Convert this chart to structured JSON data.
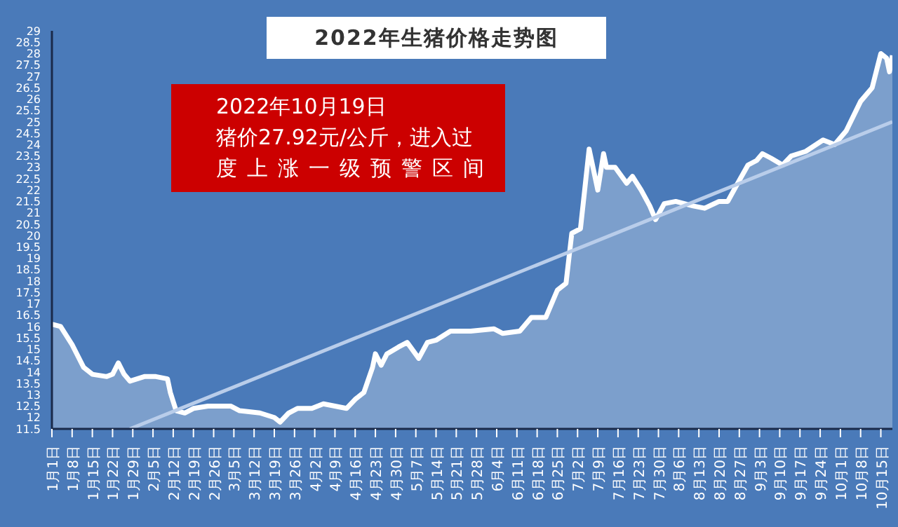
{
  "chart_data": {
    "type": "area",
    "title": "2022年生猪价格走势图",
    "annotations": [
      "2022年10月19日",
      "猪价27.92元/公斤，进入过",
      "度上涨一级预警区间"
    ],
    "xlim": [
      "--01-01",
      "--10-19"
    ],
    "xticks": [
      {
        "value": "--01-01",
        "label": "1月1日"
      },
      {
        "value": "--01-08",
        "label": "1月8日"
      },
      {
        "value": "--01-15",
        "label": "1月15日"
      },
      {
        "value": "--01-22",
        "label": "1月22日"
      },
      {
        "value": "--01-29",
        "label": "1月29日"
      },
      {
        "value": "--02-05",
        "label": "2月5日"
      },
      {
        "value": "--02-12",
        "label": "2月12日"
      },
      {
        "value": "--02-19",
        "label": "2月19日"
      },
      {
        "value": "--02-26",
        "label": "2月26日"
      },
      {
        "value": "--03-05",
        "label": "3月5日"
      },
      {
        "value": "--03-12",
        "label": "3月12日"
      },
      {
        "value": "--03-19",
        "label": "3月19日"
      },
      {
        "value": "--03-26",
        "label": "3月26日"
      },
      {
        "value": "--04-02",
        "label": "4月2日"
      },
      {
        "value": "--04-09",
        "label": "4月9日"
      },
      {
        "value": "--04-16",
        "label": "4月16日"
      },
      {
        "value": "--04-23",
        "label": "4月23日"
      },
      {
        "value": "--04-30",
        "label": "4月30日"
      },
      {
        "value": "--05-07",
        "label": "5月7日"
      },
      {
        "value": "--05-14",
        "label": "5月14日"
      },
      {
        "value": "--05-21",
        "label": "5月21日"
      },
      {
        "value": "--05-28",
        "label": "5月28日"
      },
      {
        "value": "--06-04",
        "label": "6月4日"
      },
      {
        "value": "--06-11",
        "label": "6月11日"
      },
      {
        "value": "--06-18",
        "label": "6月18日"
      },
      {
        "value": "--06-25",
        "label": "6月25日"
      },
      {
        "value": "--07-02",
        "label": "7月2日"
      },
      {
        "value": "--07-09",
        "label": "7月9日"
      },
      {
        "value": "--07-16",
        "label": "7月16日"
      },
      {
        "value": "--07-23",
        "label": "7月23日"
      },
      {
        "value": "--07-30",
        "label": "7月30日"
      },
      {
        "value": "--08-06",
        "label": "8月6日"
      },
      {
        "value": "--08-13",
        "label": "8月13日"
      },
      {
        "value": "--08-20",
        "label": "8月20日"
      },
      {
        "value": "--08-27",
        "label": "8月27日"
      },
      {
        "value": "--09-03",
        "label": "9月3日"
      },
      {
        "value": "--09-10",
        "label": "9月10日"
      },
      {
        "value": "--09-17",
        "label": "9月17日"
      },
      {
        "value": "--09-24",
        "label": "9月24日"
      },
      {
        "value": "--10-01",
        "label": "10月1日"
      },
      {
        "value": "--10-08",
        "label": "10月8日"
      },
      {
        "value": "--10-15",
        "label": "10月15日"
      }
    ],
    "ylim": [
      11.5,
      29
    ],
    "yticks": [
      11.5,
      12,
      12.5,
      13,
      13.5,
      14,
      14.5,
      15,
      15.5,
      16,
      16.5,
      17,
      17.5,
      18,
      18.5,
      19,
      19.5,
      20,
      20.5,
      21,
      21.5,
      22,
      22.5,
      23,
      23.5,
      24,
      24.5,
      25,
      25.5,
      26,
      26.5,
      27,
      27.5,
      28,
      28.5,
      29
    ],
    "series": [
      {
        "color": "#ffffff",
        "x": [
          "--01-01",
          "--01-04",
          "--01-08",
          "--01-12",
          "--01-15",
          "--01-20",
          "--01-22",
          "--01-24",
          "--01-26",
          "--01-28",
          "--02-02",
          "--02-06",
          "--02-10",
          "--02-11",
          "--02-13",
          "--02-16",
          "--02-19",
          "--02-24",
          "--03-04",
          "--03-07",
          "--03-14",
          "--03-19",
          "--03-21",
          "--03-24",
          "--03-27",
          "--04-01",
          "--04-05",
          "--04-09",
          "--04-13",
          "--04-16",
          "--04-19",
          "--04-22",
          "--04-23",
          "--04-25",
          "--04-27",
          "--05-01",
          "--05-04",
          "--05-08",
          "--05-11",
          "--05-14",
          "--05-19",
          "--05-26",
          "--06-03",
          "--06-06",
          "--06-12",
          "--06-16",
          "--06-21",
          "--06-25",
          "--06-28",
          "--06-30",
          "--07-03",
          "--07-06",
          "--07-09",
          "--07-11",
          "--07-12",
          "--07-15",
          "--07-19",
          "--07-21",
          "--07-24",
          "--07-27",
          "--07-29",
          "--08-01",
          "--08-05",
          "--08-08",
          "--08-11",
          "--08-15",
          "--08-20",
          "--08-23",
          "--08-26",
          "--08-30",
          "--09-02",
          "--09-04",
          "--09-07",
          "--09-11",
          "--09-14",
          "--09-19",
          "--09-25",
          "--09-29",
          "--10-03",
          "--10-08",
          "--10-12",
          "--10-15",
          "--10-17",
          "--10-18",
          "--10-19"
        ],
        "values": [
          16.1,
          16.0,
          15.2,
          14.2,
          13.9,
          13.8,
          13.9,
          14.4,
          13.9,
          13.6,
          13.8,
          13.8,
          13.7,
          13.1,
          12.3,
          12.2,
          12.4,
          12.5,
          12.5,
          12.3,
          12.2,
          12.0,
          11.8,
          12.2,
          12.4,
          12.4,
          12.6,
          12.5,
          12.4,
          12.8,
          13.1,
          14.2,
          14.8,
          14.3,
          14.8,
          15.1,
          15.3,
          14.6,
          15.3,
          15.4,
          15.8,
          15.8,
          15.9,
          15.7,
          15.8,
          16.4,
          16.4,
          17.6,
          17.9,
          20.1,
          20.3,
          23.8,
          22.0,
          23.6,
          23.0,
          23.0,
          22.3,
          22.6,
          22.0,
          21.3,
          20.7,
          21.4,
          21.5,
          21.4,
          21.3,
          21.2,
          21.5,
          21.5,
          22.2,
          23.1,
          23.3,
          23.6,
          23.4,
          23.1,
          23.5,
          23.7,
          24.2,
          24.0,
          24.6,
          25.9,
          26.5,
          28.0,
          27.8,
          27.2,
          27.92
        ]
      },
      {
        "type": "line",
        "color": "#b9cdea",
        "x": [
          "--01-28",
          "--10-19"
        ],
        "values": [
          11.5,
          25.0
        ]
      }
    ]
  }
}
